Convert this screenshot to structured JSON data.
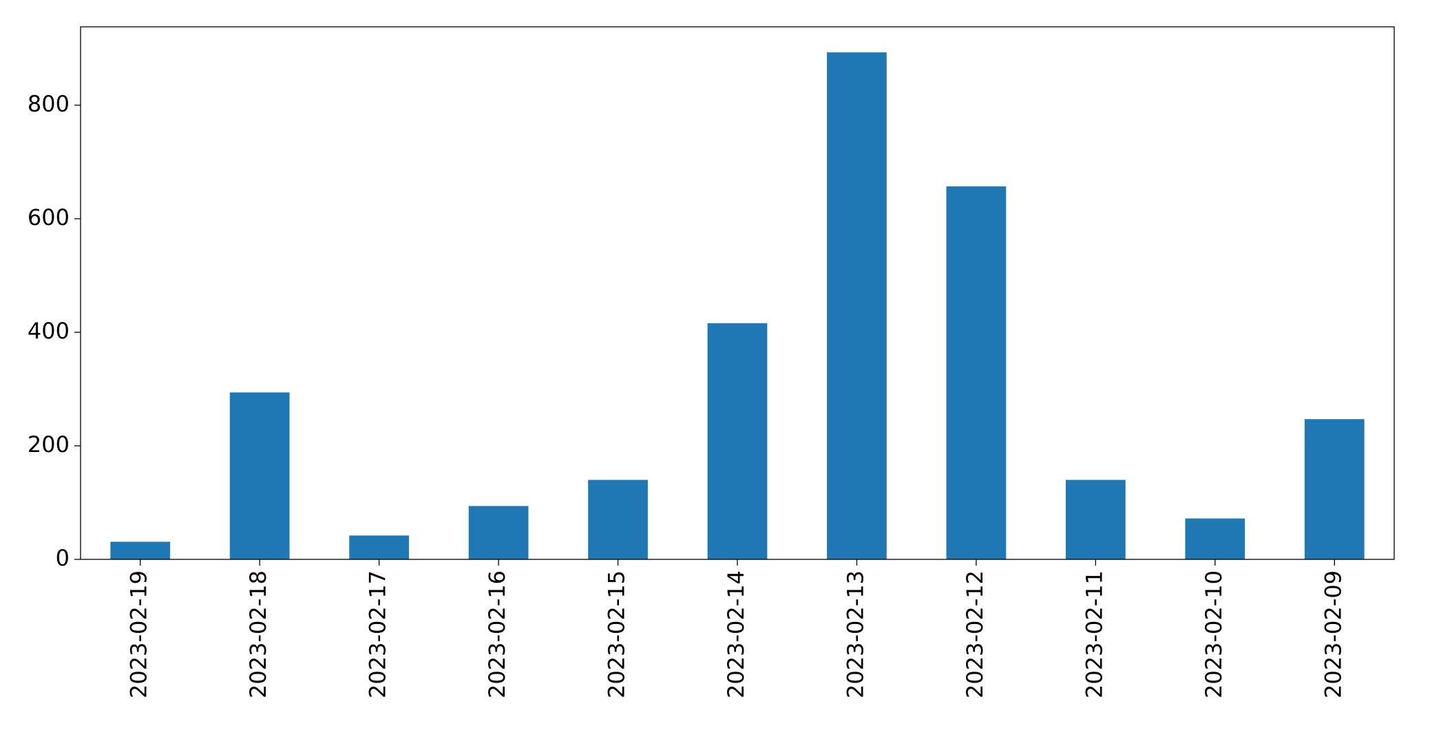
{
  "chart_data": {
    "type": "bar",
    "categories": [
      "2023-02-19",
      "2023-02-18",
      "2023-02-17",
      "2023-02-16",
      "2023-02-15",
      "2023-02-14",
      "2023-02-13",
      "2023-02-12",
      "2023-02-11",
      "2023-02-10",
      "2023-02-09"
    ],
    "values": [
      31,
      294,
      42,
      94,
      140,
      416,
      893,
      657,
      140,
      72,
      247
    ],
    "color": "#1f77b4",
    "ylim": [
      0,
      938
    ],
    "yticks": [
      0,
      200,
      400,
      600,
      800
    ],
    "grid": false
  }
}
